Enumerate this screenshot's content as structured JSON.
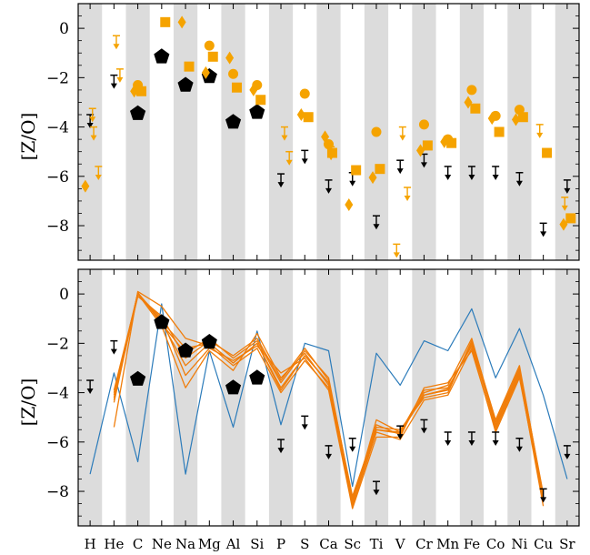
{
  "colors": {
    "orange": "#f5a300",
    "orange_line": "#f07d0a",
    "blue_line": "#2b7bba",
    "black": "#000000",
    "stripe": "#dcdcdc"
  },
  "chart_data": [
    {
      "type": "scatter",
      "panel": "top",
      "ylabel": "[Z/O]",
      "ylim": [
        -9.4,
        1.0
      ],
      "yticks": [
        0,
        -2,
        -4,
        -6,
        -8
      ],
      "ytick_labels": [
        "0",
        "−2",
        "−4",
        "−6",
        "−8"
      ],
      "elements": [
        "H",
        "He",
        "C",
        "Ne",
        "Na",
        "Mg",
        "Al",
        "Si",
        "P",
        "S",
        "Ca",
        "Sc",
        "Ti",
        "V",
        "Cr",
        "Mn",
        "Fe",
        "Co",
        "Ni",
        "Cu",
        "Sr"
      ],
      "shaded_columns": true,
      "series": [
        {
          "marker": "pentagon",
          "color": "black",
          "points": [
            [
              2,
              -3.45
            ],
            [
              3,
              -1.15
            ],
            [
              4,
              -2.3
            ],
            [
              5,
              -1.95
            ],
            [
              6,
              -3.8
            ],
            [
              7,
              -3.4
            ]
          ]
        },
        {
          "marker": "upper-limit",
          "color": "black",
          "points": [
            [
              0,
              -3.5
            ],
            [
              1,
              -1.9
            ],
            [
              8,
              -5.9
            ],
            [
              9,
              -4.95
            ],
            [
              10,
              -6.15
            ],
            [
              11,
              -5.85
            ],
            [
              12,
              -7.6
            ],
            [
              13,
              -5.35
            ],
            [
              14,
              -5.1
            ],
            [
              15,
              -5.6
            ],
            [
              16,
              -5.6
            ],
            [
              17,
              -5.6
            ],
            [
              18,
              -5.85
            ],
            [
              19,
              -7.9
            ],
            [
              20,
              -6.15
            ]
          ]
        },
        {
          "marker": "diamond",
          "color": "orange",
          "points": [
            [
              -0.2,
              -6.4
            ],
            [
              1.85,
              -2.55
            ],
            [
              3.85,
              0.25
            ],
            [
              4.85,
              -1.8
            ],
            [
              5.85,
              -1.2
            ],
            [
              6.85,
              -2.5
            ],
            [
              8.85,
              -3.5
            ],
            [
              9.85,
              -4.4
            ],
            [
              10.85,
              -7.15
            ],
            [
              11.85,
              -6.05
            ],
            [
              13.85,
              -4.95
            ],
            [
              14.85,
              -4.6
            ],
            [
              15.85,
              -3.0
            ],
            [
              16.85,
              -3.65
            ],
            [
              17.85,
              -3.7
            ],
            [
              19.85,
              -7.95
            ]
          ]
        },
        {
          "marker": "circle",
          "color": "orange",
          "points": [
            [
              2.0,
              -2.3
            ],
            [
              5.0,
              -0.7
            ],
            [
              6.0,
              -1.85
            ],
            [
              7.0,
              -2.3
            ],
            [
              9.0,
              -2.65
            ],
            [
              10.0,
              -4.7
            ],
            [
              12.0,
              -4.2
            ],
            [
              14.0,
              -3.9
            ],
            [
              15.0,
              -4.5
            ],
            [
              16.0,
              -2.5
            ],
            [
              17.0,
              -3.55
            ],
            [
              18.0,
              -3.3
            ]
          ]
        },
        {
          "marker": "square",
          "color": "orange",
          "points": [
            [
              2.15,
              -2.55
            ],
            [
              3.15,
              0.25
            ],
            [
              4.15,
              -1.55
            ],
            [
              5.15,
              -1.15
            ],
            [
              6.15,
              -2.4
            ],
            [
              7.15,
              -2.9
            ],
            [
              9.15,
              -3.6
            ],
            [
              10.15,
              -5.05
            ],
            [
              11.15,
              -5.75
            ],
            [
              12.15,
              -5.7
            ],
            [
              14.15,
              -4.75
            ],
            [
              15.15,
              -4.65
            ],
            [
              16.15,
              -3.25
            ],
            [
              17.15,
              -4.2
            ],
            [
              18.15,
              -3.6
            ],
            [
              19.15,
              -5.05
            ],
            [
              20.15,
              -7.7
            ]
          ]
        },
        {
          "marker": "upper-limit",
          "color": "orange",
          "points": [
            [
              0.15,
              -4.0
            ],
            [
              0.35,
              -5.6
            ],
            [
              0.1,
              -3.25
            ],
            [
              1.1,
              -0.3
            ],
            [
              1.25,
              -1.65
            ],
            [
              8.15,
              -4.0
            ],
            [
              8.35,
              -5.0
            ],
            [
              10.1,
              -4.8
            ],
            [
              12.85,
              -8.75
            ],
            [
              13.1,
              -4.0
            ],
            [
              13.3,
              -6.45
            ],
            [
              18.85,
              -3.9
            ],
            [
              19.9,
              -6.85
            ]
          ]
        }
      ]
    },
    {
      "type": "line",
      "panel": "bottom",
      "ylabel": "[Z/O]",
      "ylim": [
        -9.4,
        1.0
      ],
      "yticks": [
        0,
        -2,
        -4,
        -6,
        -8
      ],
      "ytick_labels": [
        "0",
        "−2",
        "−4",
        "−6",
        "−8"
      ],
      "xtick_labels": [
        "H",
        "He",
        "C",
        "Ne",
        "Na",
        "Mg",
        "Al",
        "Si",
        "P",
        "S",
        "Ca",
        "Sc",
        "Ti",
        "V",
        "Cr",
        "Mn",
        "Fe",
        "Co",
        "Ni",
        "Cu",
        "Sr"
      ],
      "shaded_columns": true,
      "series": [
        {
          "color": "blue_line",
          "values": [
            -7.3,
            -3.2,
            -6.8,
            -0.4,
            -7.3,
            -2.3,
            -5.4,
            -1.5,
            -5.3,
            -2.0,
            -2.3,
            -7.8,
            -2.4,
            -3.7,
            -1.9,
            -2.3,
            -0.6,
            -3.4,
            -1.4,
            -4.1,
            -7.5
          ]
        },
        {
          "color": "orange_line",
          "values": [
            null,
            -4.1,
            0.05,
            -1.1,
            -2.2,
            -2.0,
            -2.8,
            -2.0,
            -3.8,
            -2.5,
            -3.6,
            -8.4,
            -5.5,
            -5.6,
            -4.1,
            -3.9,
            -2.0,
            -5.4,
            -3.2,
            -8.2,
            null
          ]
        },
        {
          "color": "orange_line",
          "values": [
            null,
            -4.3,
            0.05,
            -1.2,
            -2.4,
            -1.8,
            -2.6,
            -1.9,
            -3.6,
            -2.3,
            -3.4,
            -8.3,
            -5.3,
            -5.7,
            -4.0,
            -3.7,
            -1.8,
            -5.2,
            -3.0,
            -8.1,
            null
          ]
        },
        {
          "color": "orange_line",
          "values": [
            null,
            -5.4,
            0.1,
            -0.5,
            -1.8,
            -2.1,
            -2.9,
            -2.2,
            -4.0,
            -2.7,
            -3.8,
            -8.6,
            -5.6,
            -5.9,
            -4.3,
            -4.1,
            -2.2,
            -5.6,
            -3.4,
            -8.4,
            null
          ]
        },
        {
          "color": "orange_line",
          "values": [
            null,
            -4.0,
            0.0,
            -1.3,
            -3.8,
            -2.3,
            -3.1,
            -1.6,
            -3.4,
            -2.4,
            -3.7,
            -8.5,
            -5.1,
            -5.6,
            -3.9,
            -3.8,
            -2.1,
            -5.3,
            -3.1,
            -8.3,
            null
          ]
        },
        {
          "color": "orange_line",
          "values": [
            null,
            -4.2,
            -0.1,
            -0.9,
            -2.6,
            -1.9,
            -2.5,
            -1.8,
            -3.5,
            -2.2,
            -3.5,
            -8.2,
            -5.4,
            -5.5,
            -4.2,
            -4.0,
            -1.9,
            -5.1,
            -2.9,
            -8.2,
            null
          ]
        },
        {
          "color": "orange_line",
          "values": [
            null,
            -3.9,
            0.0,
            -1.0,
            -3.3,
            -2.2,
            -2.7,
            -2.1,
            -3.2,
            -2.6,
            -3.9,
            -8.7,
            -5.8,
            -5.8,
            -3.8,
            -3.6,
            -2.3,
            -5.5,
            -3.3,
            -8.6,
            null
          ]
        },
        {
          "color": "orange_line",
          "values": [
            null,
            -4.4,
            0.05,
            -1.15,
            -2.9,
            -2.0,
            -2.8,
            -2.0,
            -3.9,
            -2.5,
            -3.6,
            -8.45,
            -5.5,
            -5.65,
            -4.1,
            -3.85,
            -2.0,
            -5.35,
            -3.2,
            -8.25,
            null
          ]
        }
      ],
      "markers": [
        {
          "marker": "pentagon",
          "color": "black",
          "points": [
            [
              2,
              -3.45
            ],
            [
              3,
              -1.15
            ],
            [
              4,
              -2.3
            ],
            [
              5,
              -1.95
            ],
            [
              6,
              -3.8
            ],
            [
              7,
              -3.4
            ]
          ]
        },
        {
          "marker": "upper-limit",
          "color": "black",
          "points": [
            [
              0,
              -3.5
            ],
            [
              1,
              -1.9
            ],
            [
              8,
              -5.9
            ],
            [
              9,
              -4.95
            ],
            [
              10,
              -6.15
            ],
            [
              11,
              -5.85
            ],
            [
              12,
              -7.6
            ],
            [
              13,
              -5.35
            ],
            [
              14,
              -5.1
            ],
            [
              15,
              -5.6
            ],
            [
              16,
              -5.6
            ],
            [
              17,
              -5.6
            ],
            [
              18,
              -5.85
            ],
            [
              19,
              -7.9
            ],
            [
              20,
              -6.15
            ]
          ]
        }
      ]
    }
  ]
}
